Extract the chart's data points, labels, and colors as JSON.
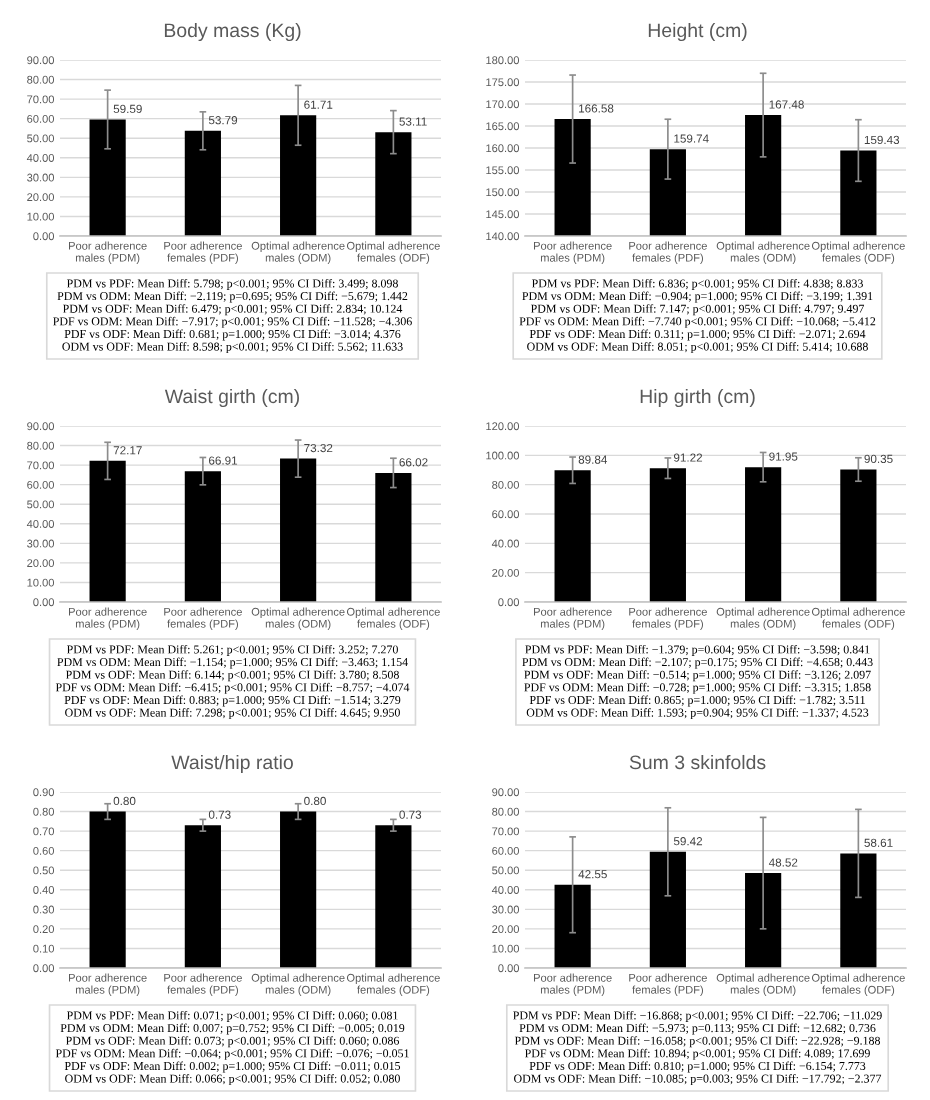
{
  "chart_data": [
    {
      "type": "bar",
      "title": "Body mass (Kg)",
      "categories": [
        "Poor adherence\nmales (PDM)",
        "Poor adherence\nfemales (PDF)",
        "Optimal adherence\nmales (ODM)",
        "Optimal adherence\nfemales (ODF)"
      ],
      "values": [
        59.59,
        53.79,
        61.71,
        53.11
      ],
      "errors": [
        15,
        9.7,
        15.3,
        11
      ],
      "value_labels": [
        "59.59",
        "53.79",
        "61.71",
        "53.11"
      ],
      "color": "#000000",
      "ylim": [
        0,
        90
      ],
      "yticks": [
        {
          "value": 0,
          "label": "0.00"
        },
        {
          "value": 10,
          "label": "10.00"
        },
        {
          "value": 20,
          "label": "20.00"
        },
        {
          "value": 30,
          "label": "30.00"
        },
        {
          "value": 40,
          "label": "40.00"
        },
        {
          "value": 50,
          "label": "50.00"
        },
        {
          "value": 60,
          "label": "60.00"
        },
        {
          "value": 70,
          "label": "70.00"
        },
        {
          "value": 80,
          "label": "80.00"
        },
        {
          "value": 90,
          "label": "90.00"
        }
      ],
      "grid": "y",
      "annotations": [
        "PDM vs PDF: Mean Diff: 5.798; p<0.001; 95% CI Diff: 3.499; 8.098",
        "PDM vs ODM: Mean Diff: −2.119; p=0.695; 95% CI Diff: −5.679; 1.442",
        "PDM vs ODF: Mean Diff: 6.479; p<0.001; 95% CI Diff: 2.834; 10.124",
        "PDF vs ODM: Mean Diff: −7.917; p<0.001; 95% CI Diff: −11.528; −4.306",
        "PDF vs ODF: Mean Diff: 0.681; p=1.000; 95% CI Diff: −3.014; 4.376",
        "ODM vs ODF: Mean Diff: 8.598; p<0.001; 95% CI Diff: 5.562; 11.633"
      ]
    },
    {
      "type": "bar",
      "title": "Height (cm)",
      "categories": [
        "Poor adherence\nmales (PDM)",
        "Poor adherence\nfemales (PDF)",
        "Optimal adherence\nmales (ODM)",
        "Optimal adherence\nfemales (ODF)"
      ],
      "values": [
        166.58,
        159.74,
        167.48,
        159.43
      ],
      "errors": [
        10,
        6.8,
        9.5,
        7
      ],
      "value_labels": [
        "166.58",
        "159.74",
        "167.48",
        "159.43"
      ],
      "color": "#000000",
      "ylim": [
        140,
        180
      ],
      "yticks": [
        {
          "value": 140,
          "label": "140.00"
        },
        {
          "value": 145,
          "label": "145.00"
        },
        {
          "value": 150,
          "label": "150.00"
        },
        {
          "value": 155,
          "label": "155.00"
        },
        {
          "value": 160,
          "label": "160.00"
        },
        {
          "value": 165,
          "label": "165.00"
        },
        {
          "value": 170,
          "label": "170.00"
        },
        {
          "value": 175,
          "label": "175.00"
        },
        {
          "value": 180,
          "label": "180.00"
        }
      ],
      "grid": "y",
      "annotations": [
        "PDM vs PDF: Mean Diff: 6.836; p<0.001; 95% CI Diff: 4.838; 8.833",
        "PDM vs ODM: Mean Diff: −0.904; p=1.000; 95% CI Diff: −3.199; 1.391",
        "PDM vs ODF: Mean Diff: 7.147; p<0.001; 95% CI Diff: 4.797; 9.497",
        "PDF vs ODM: Mean Diff: −7.740 p<0.001; 95% CI Diff: −10.068; −5.412",
        "PDF vs ODF: Mean Diff: 0.311; p=1.000; 95% CI Diff: −2.071; 2.694",
        "ODM vs ODF: Mean Diff: 8.051; p<0.001; 95% CI Diff: 5.414; 10.688"
      ]
    },
    {
      "type": "bar",
      "title": "Waist girth (cm)",
      "categories": [
        "Poor adherence\nmales (PDM)",
        "Poor adherence\nfemales (PDF)",
        "Optimal adherence\nmales (ODM)",
        "Optimal adherence\nfemales (ODF)"
      ],
      "values": [
        72.17,
        66.91,
        73.32,
        66.02
      ],
      "errors": [
        9.5,
        7,
        9.5,
        7.5
      ],
      "value_labels": [
        "72.17",
        "66.91",
        "73.32",
        "66.02"
      ],
      "color": "#000000",
      "ylim": [
        0,
        90
      ],
      "yticks": [
        {
          "value": 0,
          "label": "0.00"
        },
        {
          "value": 10,
          "label": "10.00"
        },
        {
          "value": 20,
          "label": "20.00"
        },
        {
          "value": 30,
          "label": "30.00"
        },
        {
          "value": 40,
          "label": "40.00"
        },
        {
          "value": 50,
          "label": "50.00"
        },
        {
          "value": 60,
          "label": "60.00"
        },
        {
          "value": 70,
          "label": "70.00"
        },
        {
          "value": 80,
          "label": "80.00"
        },
        {
          "value": 90,
          "label": "90.00"
        }
      ],
      "grid": "y",
      "annotations": [
        "PDM vs PDF: Mean Diff: 5.261; p<0.001; 95% CI Diff: 3.252; 7.270",
        "PDM vs ODM: Mean Diff: −1.154; p=1.000; 95% CI Diff: −3.463; 1.154",
        "PDM vs ODF: Mean Diff: 6.144; p<0.001; 95% CI Diff: 3.780; 8.508",
        "PDF vs ODM: Mean Diff: −6.415; p<0.001; 95% CI Diff: −8.757; −4.074",
        "PDF vs ODF: Mean Diff: 0.883; p=1.000; 95% CI Diff: −1.514; 3.279",
        "ODM vs ODF: Mean Diff: 7.298; p<0.001; 95% CI Diff: 4.645; 9.950"
      ]
    },
    {
      "type": "bar",
      "title": "Hip girth (cm)",
      "categories": [
        "Poor adherence\nmales (PDM)",
        "Poor adherence\nfemales (PDF)",
        "Optimal adherence\nmales (ODM)",
        "Optimal adherence\nfemales (ODF)"
      ],
      "values": [
        89.84,
        91.22,
        91.95,
        90.35
      ],
      "errors": [
        9,
        7,
        10,
        8
      ],
      "value_labels": [
        "89.84",
        "91.22",
        "91.95",
        "90.35"
      ],
      "color": "#000000",
      "ylim": [
        0,
        120
      ],
      "yticks": [
        {
          "value": 0,
          "label": "0.00"
        },
        {
          "value": 20,
          "label": "20.00"
        },
        {
          "value": 40,
          "label": "40.00"
        },
        {
          "value": 60,
          "label": "60.00"
        },
        {
          "value": 80,
          "label": "80.00"
        },
        {
          "value": 100,
          "label": "100.00"
        },
        {
          "value": 120,
          "label": "120.00"
        }
      ],
      "grid": "y",
      "annotations": [
        "PDM vs PDF: Mean Diff: −1.379; p=0.604; 95% CI Diff: −3.598; 0.841",
        "PDM vs ODM: Mean Diff: −2.107; p=0.175; 95% CI Diff: −4.658; 0.443",
        "PDM vs ODF: Mean Diff: −0.514; p=1.000; 95% CI Diff: −3.126; 2.097",
        "PDF vs ODM: Mean Diff: −0.728; p=1.000; 95% CI Diff: −3.315; 1.858",
        "PDF vs ODF: Mean Diff: 0.865; p=1.000; 95% CI Diff: −1.782; 3.511",
        "ODM vs ODF: Mean Diff: 1.593; p=0.904; 95% CI Diff: −1.337; 4.523"
      ]
    },
    {
      "type": "bar",
      "title": "Waist/hip ratio",
      "categories": [
        "Poor adherence\nmales (PDM)",
        "Poor adherence\nfemales (PDF)",
        "Optimal adherence\nmales (ODM)",
        "Optimal adherence\nfemales (ODF)"
      ],
      "values": [
        0.8,
        0.73,
        0.8,
        0.73
      ],
      "errors": [
        0.04,
        0.03,
        0.04,
        0.03
      ],
      "value_labels": [
        "0.80",
        "0.73",
        "0.80",
        "0.73"
      ],
      "color": "#000000",
      "ylim": [
        0,
        0.9
      ],
      "yticks": [
        {
          "value": 0,
          "label": "0.00"
        },
        {
          "value": 0.1,
          "label": "0.10"
        },
        {
          "value": 0.2,
          "label": "0.20"
        },
        {
          "value": 0.3,
          "label": "0.30"
        },
        {
          "value": 0.4,
          "label": "0.40"
        },
        {
          "value": 0.5,
          "label": "0.50"
        },
        {
          "value": 0.6,
          "label": "0.60"
        },
        {
          "value": 0.7,
          "label": "0.70"
        },
        {
          "value": 0.8,
          "label": "0.80"
        },
        {
          "value": 0.9,
          "label": "0.90"
        }
      ],
      "grid": "y",
      "annotations": [
        "PDM vs PDF: Mean Diff: 0.071; p<0.001; 95% CI Diff: 0.060; 0.081",
        "PDM vs ODM: Mean Diff: 0.007; p=0.752; 95% CI Diff: −0.005; 0.019",
        "PDM vs ODF: Mean Diff: 0.073; p<0.001; 95% CI Diff: 0.060; 0.086",
        "PDF vs ODM: Mean Diff: −0.064; p<0.001; 95% CI Diff: −0.076; −0.051",
        "PDF vs ODF: Mean Diff: 0.002; p=1.000; 95% CI Diff: −0.011; 0.015",
        "ODM vs ODF: Mean Diff: 0.066; p<0.001; 95% CI Diff: 0.052; 0.080"
      ]
    },
    {
      "type": "bar",
      "title": "Sum 3 skinfolds",
      "categories": [
        "Poor adherence\nmales (PDM)",
        "Poor adherence\nfemales (PDF)",
        "Optimal adherence\nmales (ODM)",
        "Optimal adherence\nfemales (ODF)"
      ],
      "values": [
        42.55,
        59.42,
        48.52,
        58.61
      ],
      "errors": [
        24.5,
        22.5,
        28.5,
        22.5
      ],
      "value_labels": [
        "42.55",
        "59.42",
        "48.52",
        "58.61"
      ],
      "color": "#000000",
      "ylim": [
        0,
        90
      ],
      "yticks": [
        {
          "value": 0,
          "label": "0.00"
        },
        {
          "value": 10,
          "label": "10.00"
        },
        {
          "value": 20,
          "label": "20.00"
        },
        {
          "value": 30,
          "label": "30.00"
        },
        {
          "value": 40,
          "label": "40.00"
        },
        {
          "value": 50,
          "label": "50.00"
        },
        {
          "value": 60,
          "label": "60.00"
        },
        {
          "value": 70,
          "label": "70.00"
        },
        {
          "value": 80,
          "label": "80.00"
        },
        {
          "value": 90,
          "label": "90.00"
        }
      ],
      "grid": "y",
      "annotations": [
        "PDM vs PDF: Mean Diff: −16.868; p<0.001; 95% CI Diff: −22.706; −11.029",
        "PDM vs ODM: Mean Diff: −5.973; p=0.113; 95% CI Diff: −12.682; 0.736",
        "PDM vs ODF: Mean Diff: −16.058; p<0.001; 95% CI Diff: −22.928; −9.188",
        "PDF vs ODM: Mean Diff: 10.894; p<0.001; 95% CI Diff: 4.089; 17.699",
        "PDF vs ODF: Mean Diff: 0.810; p=1.000; 95% CI Diff: −6.154; 7.773",
        "ODM vs ODF: Mean Diff: −10.085; p=0.003; 95% CI Diff: −17.792; −2.377"
      ]
    }
  ]
}
